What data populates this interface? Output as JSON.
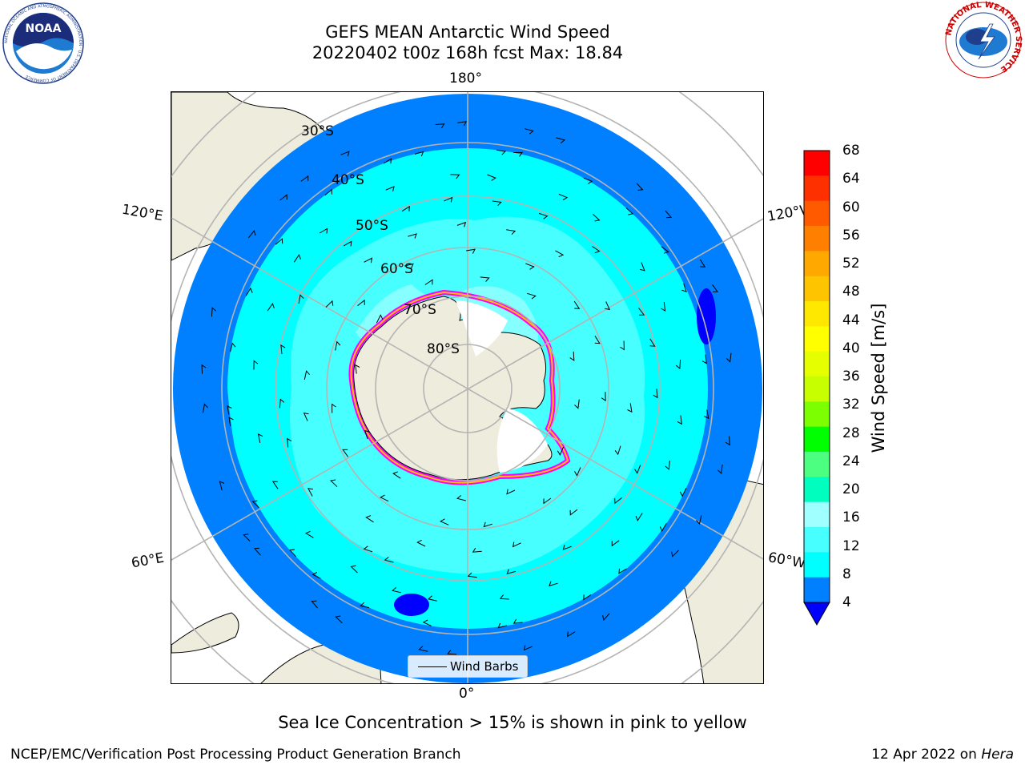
{
  "title": {
    "line1": "GEFS MEAN Antarctic Wind Speed",
    "line2": "20220402 t00z 168h fcst   Max: 18.84"
  },
  "logos": {
    "left": {
      "text": "NOAA",
      "ring_text": "NATIONAL OCEANIC AND ATMOSPHERIC ADMINISTRATION · U.S. DEPARTMENT OF COMMERCE"
    },
    "right": {
      "ring_text": "NATIONAL WEATHER SERVICE"
    }
  },
  "map": {
    "projection": "south-polar-stereographic",
    "lat_labels": [
      "30°S",
      "40°S",
      "50°S",
      "60°S",
      "70°S",
      "80°S"
    ],
    "lon_labels": {
      "top": "180°",
      "bottom": "0°",
      "left_upper": "120°E",
      "right_upper": "120°W",
      "left_lower": "60°E",
      "right_lower": "60°W"
    },
    "ocean_colors": {
      "lt8": "#0080ff",
      "8_12": "#00ffff",
      "12_16": "#48ffff",
      "16_20": "#a0ffff",
      "low": "#0000ff"
    },
    "land_color": "#eeecdc",
    "sea_ice_colors": [
      "#ff00ff",
      "#ff66cc",
      "#ffc000",
      "#ffff00"
    ]
  },
  "legend": {
    "label": "Wind Barbs"
  },
  "colorbar": {
    "label": "Wind Speed [m/s]",
    "ticks": [
      "68",
      "64",
      "60",
      "56",
      "52",
      "48",
      "44",
      "40",
      "36",
      "32",
      "28",
      "24",
      "20",
      "16",
      "12",
      "8",
      "4"
    ],
    "colors": [
      "#ff0000",
      "#ff3000",
      "#ff5a00",
      "#ff8000",
      "#ffa800",
      "#ffc400",
      "#ffe800",
      "#ffff00",
      "#e6ff00",
      "#c8ff00",
      "#7cff00",
      "#00ff00",
      "#4cff80",
      "#00ffbf",
      "#a0ffff",
      "#48ffff",
      "#00ffff",
      "#0080ff"
    ],
    "extend_color": "#0000ff"
  },
  "caption": "Sea Ice Concentration > 15% is shown in pink to yellow",
  "footer": {
    "left": "NCEP/EMC/Verification Post Processing Product Generation Branch",
    "right_date": "12 Apr 2022 on ",
    "right_machine": "Hera"
  }
}
